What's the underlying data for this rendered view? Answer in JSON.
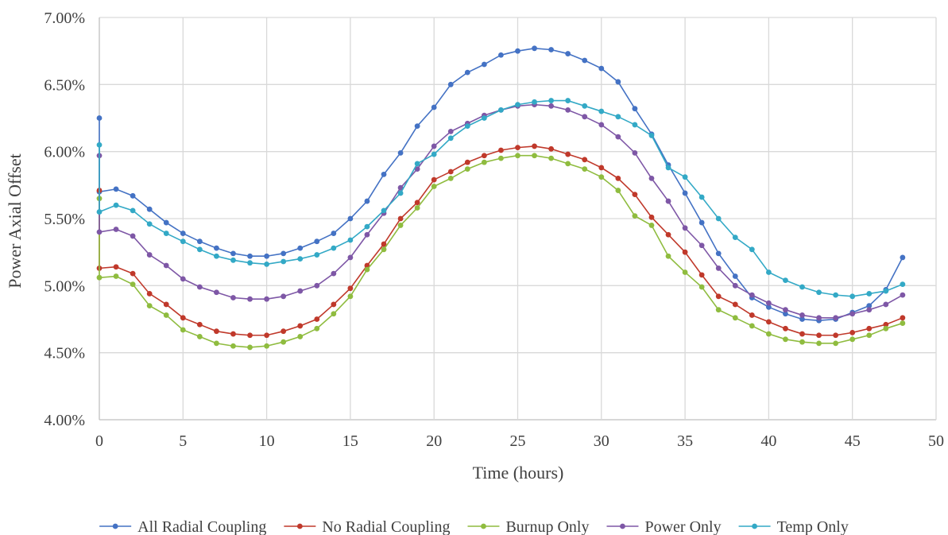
{
  "chart_data": {
    "type": "line",
    "title": "",
    "xlabel": "Time (hours)",
    "ylabel": "Power Axial Offset",
    "xlim": [
      0,
      50
    ],
    "ylim": [
      4.0,
      7.0
    ],
    "x_ticks": [
      "0",
      "5",
      "10",
      "15",
      "20",
      "25",
      "30",
      "35",
      "40",
      "45",
      "50"
    ],
    "y_ticks": [
      "4.00%",
      "4.50%",
      "5.00%",
      "5.50%",
      "6.00%",
      "6.50%",
      "7.00%"
    ],
    "y_unit": "%",
    "grid": "on",
    "legend_position": "bottom",
    "series": [
      {
        "name": "All Radial Coupling",
        "color": "#4472c4",
        "x": [
          0,
          0,
          1,
          2,
          3,
          4,
          5,
          6,
          7,
          8,
          9,
          10,
          11,
          12,
          13,
          14,
          15,
          16,
          17,
          18,
          19,
          20,
          21,
          22,
          23,
          24,
          25,
          26,
          27,
          28,
          29,
          30,
          31,
          32,
          33,
          34,
          35,
          36,
          37,
          38,
          39,
          40,
          41,
          42,
          43,
          44,
          45,
          46,
          47,
          48
        ],
        "values": [
          6.25,
          5.7,
          5.72,
          5.67,
          5.57,
          5.47,
          5.39,
          5.33,
          5.28,
          5.24,
          5.22,
          5.22,
          5.24,
          5.28,
          5.33,
          5.39,
          5.5,
          5.63,
          5.83,
          5.99,
          6.19,
          6.33,
          6.5,
          6.59,
          6.65,
          6.72,
          6.75,
          6.77,
          6.76,
          6.73,
          6.68,
          6.62,
          6.52,
          6.32,
          6.13,
          5.9,
          5.69,
          5.47,
          5.24,
          5.07,
          4.91,
          4.84,
          4.79,
          4.75,
          4.74,
          4.75,
          4.8,
          4.85,
          4.97,
          5.21
        ]
      },
      {
        "name": "No Radial Coupling",
        "color": "#c0392b",
        "x": [
          0,
          0,
          1,
          2,
          3,
          4,
          5,
          6,
          7,
          8,
          9,
          10,
          11,
          12,
          13,
          14,
          15,
          16,
          17,
          18,
          19,
          20,
          21,
          22,
          23,
          24,
          25,
          26,
          27,
          28,
          29,
          30,
          31,
          32,
          33,
          34,
          35,
          36,
          37,
          38,
          39,
          40,
          41,
          42,
          43,
          44,
          45,
          46,
          47,
          48
        ],
        "values": [
          5.71,
          5.13,
          5.14,
          5.09,
          4.94,
          4.86,
          4.76,
          4.71,
          4.66,
          4.64,
          4.63,
          4.63,
          4.66,
          4.7,
          4.75,
          4.86,
          4.98,
          5.15,
          5.31,
          5.5,
          5.62,
          5.79,
          5.85,
          5.92,
          5.97,
          6.01,
          6.03,
          6.04,
          6.02,
          5.98,
          5.94,
          5.88,
          5.8,
          5.68,
          5.51,
          5.38,
          5.25,
          5.08,
          4.92,
          4.86,
          4.78,
          4.73,
          4.68,
          4.64,
          4.63,
          4.63,
          4.65,
          4.68,
          4.71,
          4.76
        ]
      },
      {
        "name": "Burnup Only",
        "color": "#8fbc3f",
        "x": [
          0,
          0,
          1,
          2,
          3,
          4,
          5,
          6,
          7,
          8,
          9,
          10,
          11,
          12,
          13,
          14,
          15,
          16,
          17,
          18,
          19,
          20,
          21,
          22,
          23,
          24,
          25,
          26,
          27,
          28,
          29,
          30,
          31,
          32,
          33,
          34,
          35,
          36,
          37,
          38,
          39,
          40,
          41,
          42,
          43,
          44,
          45,
          46,
          47,
          48
        ],
        "values": [
          5.65,
          5.06,
          5.07,
          5.01,
          4.85,
          4.78,
          4.67,
          4.62,
          4.57,
          4.55,
          4.54,
          4.55,
          4.58,
          4.62,
          4.68,
          4.79,
          4.92,
          5.12,
          5.27,
          5.45,
          5.58,
          5.74,
          5.8,
          5.87,
          5.92,
          5.95,
          5.97,
          5.97,
          5.95,
          5.91,
          5.87,
          5.81,
          5.71,
          5.52,
          5.45,
          5.22,
          5.1,
          4.99,
          4.82,
          4.76,
          4.7,
          4.64,
          4.6,
          4.58,
          4.57,
          4.57,
          4.6,
          4.63,
          4.68,
          4.72
        ]
      },
      {
        "name": "Power Only",
        "color": "#7e57a6",
        "x": [
          0,
          0,
          1,
          2,
          3,
          4,
          5,
          6,
          7,
          8,
          9,
          10,
          11,
          12,
          13,
          14,
          15,
          16,
          17,
          18,
          19,
          20,
          21,
          22,
          23,
          24,
          25,
          26,
          27,
          28,
          29,
          30,
          31,
          32,
          33,
          34,
          35,
          36,
          37,
          38,
          39,
          40,
          41,
          42,
          43,
          44,
          45,
          46,
          47,
          48
        ],
        "values": [
          5.97,
          5.4,
          5.42,
          5.37,
          5.23,
          5.15,
          5.05,
          4.99,
          4.95,
          4.91,
          4.9,
          4.9,
          4.92,
          4.96,
          5.0,
          5.09,
          5.21,
          5.38,
          5.54,
          5.73,
          5.87,
          6.04,
          6.15,
          6.21,
          6.27,
          6.31,
          6.34,
          6.35,
          6.34,
          6.31,
          6.26,
          6.2,
          6.11,
          5.99,
          5.8,
          5.63,
          5.43,
          5.3,
          5.13,
          5.0,
          4.93,
          4.87,
          4.82,
          4.78,
          4.76,
          4.76,
          4.79,
          4.82,
          4.86,
          4.93
        ]
      },
      {
        "name": "Temp Only",
        "color": "#33a9c6",
        "x": [
          0,
          0,
          1,
          2,
          3,
          4,
          5,
          6,
          7,
          8,
          9,
          10,
          11,
          12,
          13,
          14,
          15,
          16,
          17,
          18,
          19,
          20,
          21,
          22,
          23,
          24,
          25,
          26,
          27,
          28,
          29,
          30,
          31,
          32,
          33,
          34,
          35,
          36,
          37,
          38,
          39,
          40,
          41,
          42,
          43,
          44,
          45,
          46,
          47,
          48
        ],
        "values": [
          6.05,
          5.55,
          5.6,
          5.56,
          5.46,
          5.39,
          5.33,
          5.27,
          5.22,
          5.19,
          5.17,
          5.16,
          5.18,
          5.2,
          5.23,
          5.28,
          5.34,
          5.44,
          5.56,
          5.69,
          5.91,
          5.98,
          6.1,
          6.19,
          6.25,
          6.31,
          6.35,
          6.37,
          6.38,
          6.38,
          6.34,
          6.3,
          6.26,
          6.2,
          6.12,
          5.88,
          5.81,
          5.66,
          5.5,
          5.36,
          5.27,
          5.1,
          5.04,
          4.99,
          4.95,
          4.93,
          4.92,
          4.94,
          4.96,
          5.01
        ]
      }
    ]
  }
}
